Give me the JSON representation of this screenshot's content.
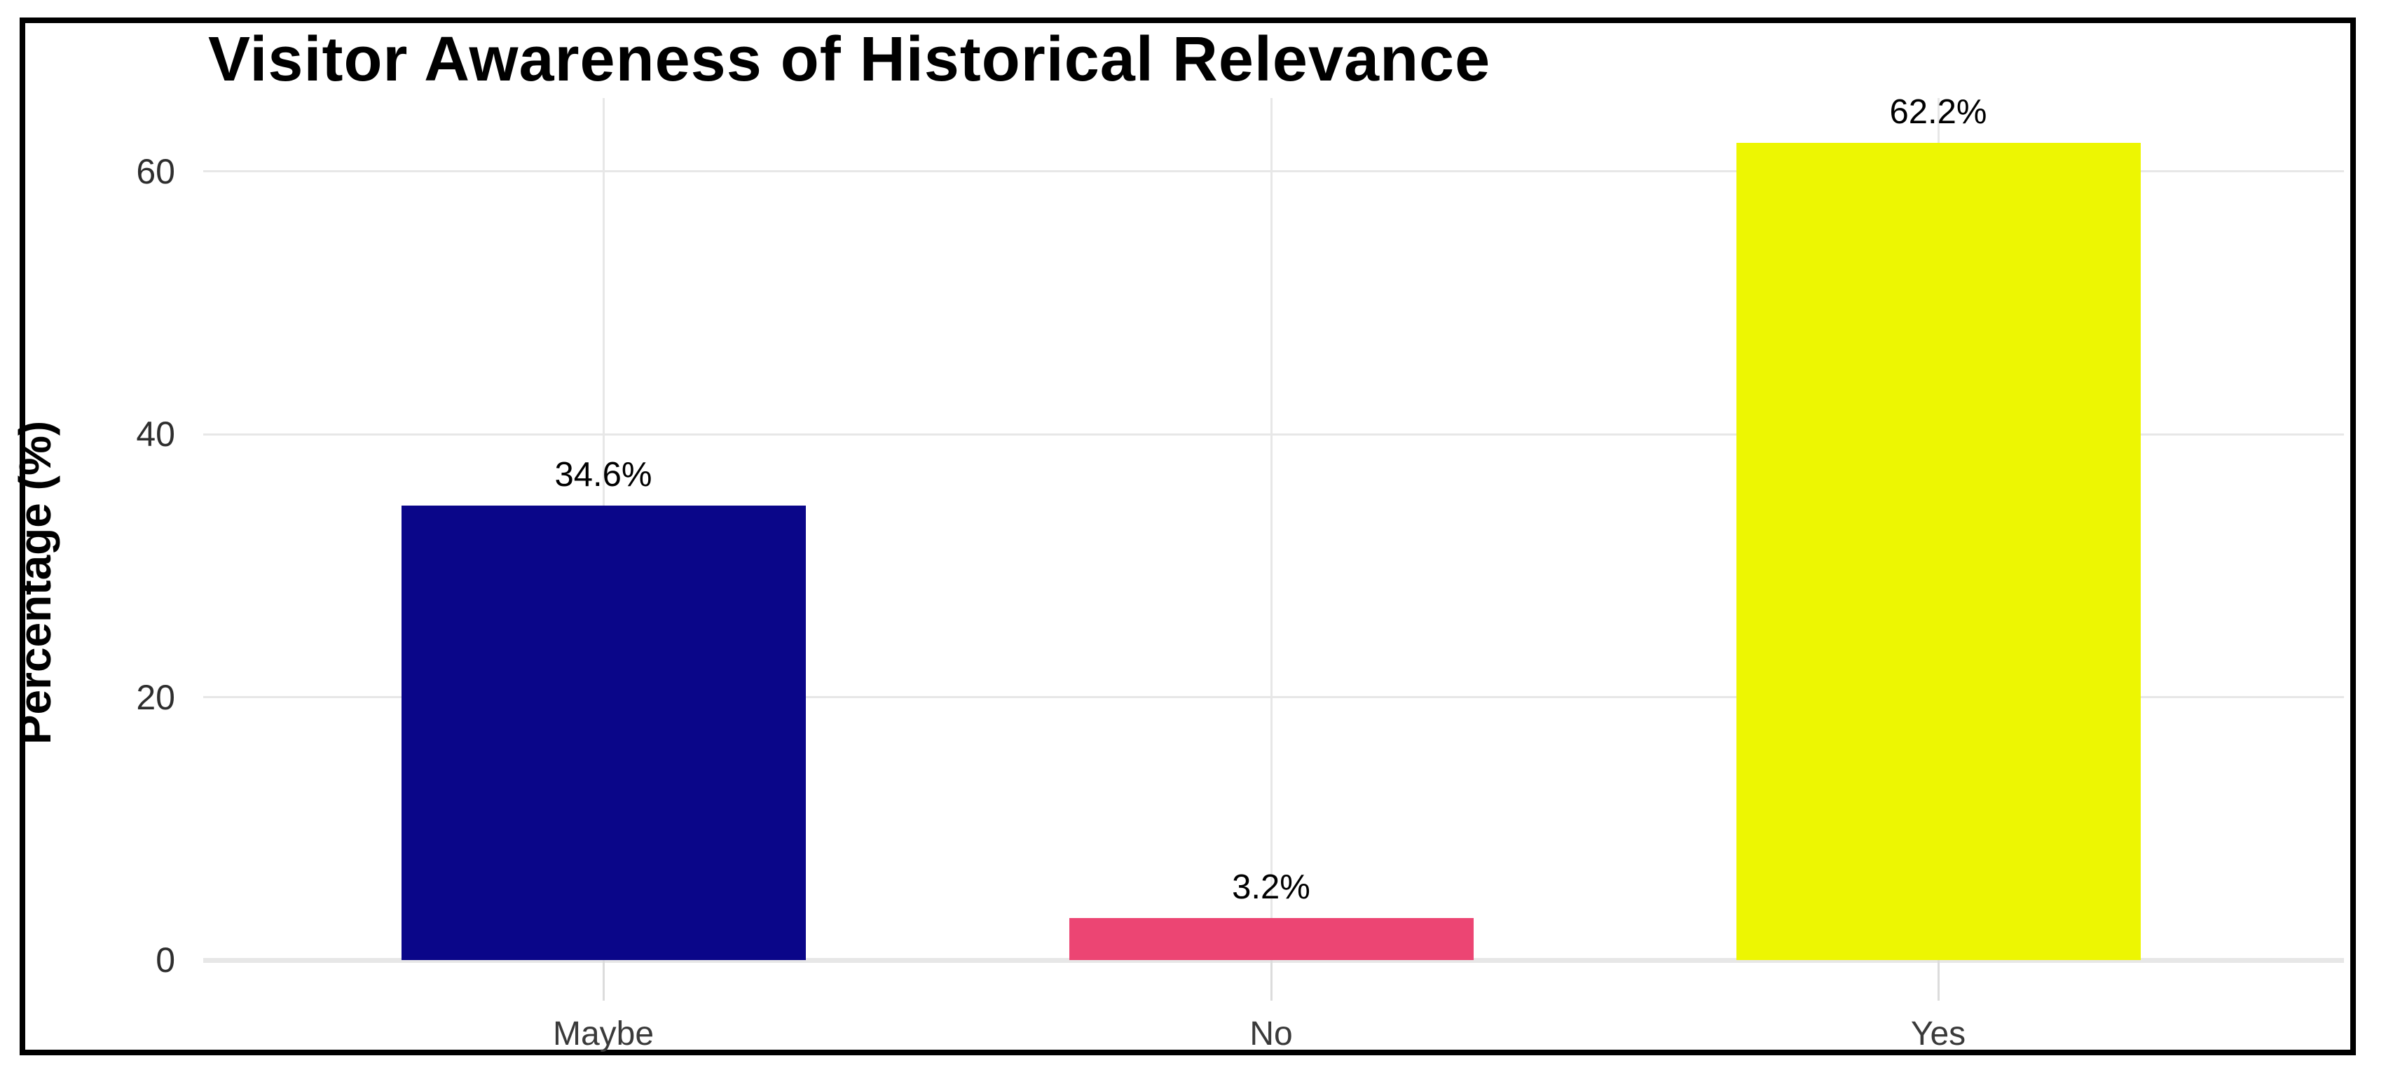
{
  "chart_data": {
    "type": "bar",
    "title": "Visitor Awareness of Historical Relevance",
    "xlabel": "",
    "ylabel": "Percentage (%)",
    "categories": [
      "Maybe",
      "No",
      "Yes"
    ],
    "values": [
      34.6,
      3.2,
      62.2
    ],
    "value_labels": [
      "34.6%",
      "3.2%",
      "62.2%"
    ],
    "bar_colors": [
      "#0A0689",
      "#EC4573",
      "#EDF602"
    ],
    "yticks": [
      0,
      20,
      40,
      60
    ],
    "ytick_labels": [
      "0",
      "20",
      "40",
      "60"
    ],
    "ylim": [
      0,
      65
    ],
    "grid": true,
    "legend": false,
    "colors": {
      "background": "#FFFFFF",
      "frame_border": "#000000",
      "gridline": "#E7E7E7",
      "tick_mark": "#DCDCDC",
      "title_text": "#000000",
      "axis_text": "#2E2E2E",
      "category_text": "#3A3A3A",
      "value_text": "#000000"
    }
  }
}
